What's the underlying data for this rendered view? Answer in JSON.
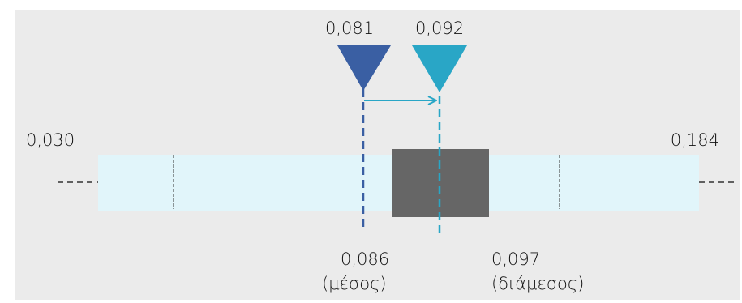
{
  "colors": {
    "panel": "#ebebeb",
    "bar": "#e1f5fa",
    "box": "#666666",
    "marker_a": "#3a5fa3",
    "marker_b": "#29a6c6",
    "whisker": "#333333"
  },
  "scale": {
    "min_label": "0,030",
    "max_label": "0,184"
  },
  "markers": {
    "a": {
      "label": "0,081",
      "value": 0.081
    },
    "b": {
      "label": "0,092",
      "value": 0.092
    }
  },
  "box_labels": {
    "left_value": "0,086",
    "left_caption": "(μέσος)",
    "right_value": "0,097",
    "right_caption": "(διάμεσος)"
  }
}
